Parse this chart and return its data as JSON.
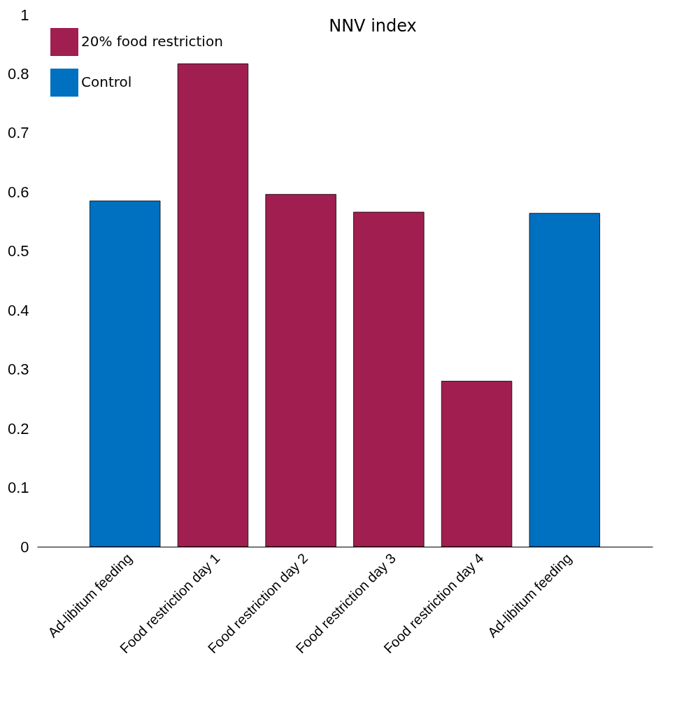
{
  "chart_data": {
    "type": "bar",
    "title": "NNV index",
    "categories": [
      "Ad-libitum feeding",
      "Food restriction day 1",
      "Food restriction day 2",
      "Food restriction day 3",
      "Food restriction day 4",
      "Ad-libitum feeding"
    ],
    "series": [
      {
        "name": "20% food restriction",
        "color": "#a01f50",
        "values": [
          null,
          0.817,
          0.596,
          0.566,
          0.28,
          null
        ]
      },
      {
        "name": "Control",
        "color": "#0070c0",
        "values": [
          0.585,
          null,
          null,
          null,
          null,
          0.564
        ]
      }
    ],
    "ylim": [
      0,
      0.9
    ],
    "yticks": [
      0,
      0.1,
      0.2,
      0.3,
      0.4,
      0.5,
      0.6,
      0.7,
      0.8,
      {
        "value": 0.9,
        "label": "1"
      }
    ],
    "legend": "top left",
    "grid": false
  }
}
